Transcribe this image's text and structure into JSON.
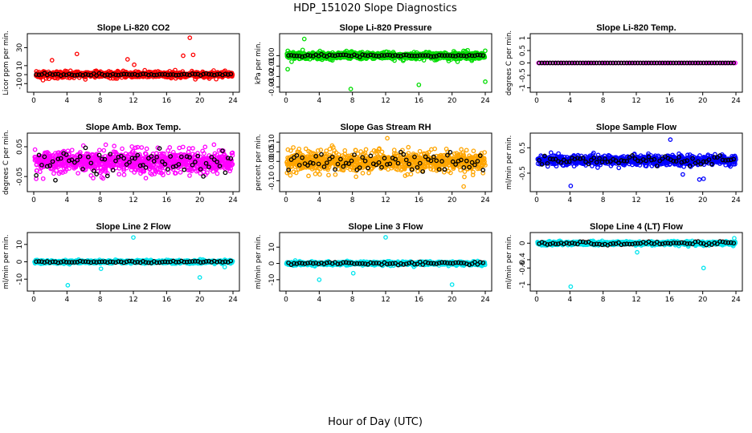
{
  "figure": {
    "title": "HDP_151020  Slope Diagnostics",
    "xlabel": "Hour of Day (UTC)"
  },
  "colors": {
    "red": "#ff0000",
    "green": "#00dd00",
    "magenta": "#ff00ff",
    "orange": "#ffa500",
    "blue": "#0000ff",
    "cyan": "#00e5ee",
    "black": "#000000"
  },
  "chart_data": [
    {
      "type": "scatter",
      "title": "Slope Li-820 CO2",
      "ylabel": "Licor ppm per min.",
      "xlim": [
        0,
        24
      ],
      "ylim": [
        -16,
        42
      ],
      "yticks": [
        -10,
        0,
        10,
        30
      ],
      "xticks": [
        0,
        4,
        8,
        12,
        16,
        20,
        24
      ],
      "color": "red",
      "spread": 4,
      "outliers": [
        [
          18.8,
          41
        ],
        [
          19.2,
          22
        ],
        [
          5.2,
          23
        ],
        [
          11.3,
          17
        ],
        [
          12.1,
          11
        ],
        [
          2.2,
          16
        ],
        [
          18,
          21
        ]
      ],
      "dense": [
        0.3,
        24
      ],
      "black_spread": 1.2
    },
    {
      "type": "scatter",
      "title": "Slope Li-820 Pressure",
      "ylabel": "kPa per min.",
      "xlim": [
        0,
        24
      ],
      "ylim": [
        -0.032,
        0.018
      ],
      "yticks": [
        -0.03,
        -0.02,
        -0.01,
        0.0
      ],
      "xticks": [
        0,
        4,
        8,
        12,
        16,
        20,
        24
      ],
      "color": "green",
      "spread": 0.004,
      "outliers": [
        [
          7.8,
          -0.032
        ],
        [
          24,
          -0.025
        ],
        [
          16,
          -0.028
        ],
        [
          2.2,
          0.016
        ],
        [
          0.2,
          -0.013
        ]
      ],
      "dense": [
        0.1,
        24
      ],
      "black_spread": 0.001
    },
    {
      "type": "scatter",
      "title": "Slope Li-820 Temp.",
      "ylabel": "degrees C per min.",
      "xlim": [
        0,
        24
      ],
      "ylim": [
        -1.05,
        1.05
      ],
      "yticks": [
        -1.0,
        -0.5,
        0.0,
        0.5,
        1.0
      ],
      "xticks": [
        0,
        4,
        8,
        12,
        16,
        20,
        24
      ],
      "color": "magenta",
      "spread": 0.0,
      "outliers": [],
      "dense": [
        0.2,
        24
      ],
      "black_spread": 0.0,
      "step": 0.33
    },
    {
      "type": "scatter",
      "title": "Slope Amb. Box Temp.",
      "ylabel": "degrees C per min.",
      "xlim": [
        0,
        24
      ],
      "ylim": [
        -0.09,
        0.085
      ],
      "yticks": [
        -0.05,
        0.05
      ],
      "xticks": [
        0,
        4,
        8,
        12,
        16,
        20,
        24
      ],
      "color": "magenta",
      "spread": 0.045,
      "outliers": [],
      "dense": [
        0.1,
        24
      ],
      "black_spread": 0.04
    },
    {
      "type": "scatter",
      "title": "Slope Gas Stream RH",
      "ylabel": "percent per min.",
      "xlim": [
        0,
        24
      ],
      "ylim": [
        -0.14,
        0.13
      ],
      "yticks": [
        -0.1,
        0.0,
        0.05,
        0.1
      ],
      "xticks": [
        0,
        4,
        8,
        12,
        16,
        20,
        24
      ],
      "color": "orange",
      "spread": 0.06,
      "outliers": [
        [
          12.2,
          0.12
        ],
        [
          21.4,
          -0.13
        ]
      ],
      "dense": [
        0.1,
        24
      ],
      "black_spread": 0.045
    },
    {
      "type": "scatter",
      "title": "Slope Sample Flow",
      "ylabel": "ml/min per min.",
      "xlim": [
        0,
        24
      ],
      "ylim": [
        -1.1,
        0.95
      ],
      "yticks": [
        -0.5,
        0.5
      ],
      "xticks": [
        0,
        4,
        8,
        12,
        16,
        20,
        24
      ],
      "color": "blue",
      "spread": 0.22,
      "outliers": [
        [
          4.1,
          -1.0
        ],
        [
          16.1,
          0.82
        ],
        [
          19.6,
          -0.75
        ],
        [
          20.1,
          -0.72
        ],
        [
          17.6,
          -0.55
        ]
      ],
      "dense": [
        0.1,
        24
      ],
      "black_spread": 0.15
    },
    {
      "type": "scatter",
      "title": "Slope Line 2 Flow",
      "ylabel": "ml/min per min.",
      "xlim": [
        0,
        24
      ],
      "ylim": [
        -15,
        15
      ],
      "yticks": [
        -10,
        0,
        10
      ],
      "xticks": [
        0,
        4,
        8,
        12,
        16,
        20,
        24
      ],
      "color": "cyan",
      "spread": 1.0,
      "outliers": [
        [
          4.1,
          -13.5
        ],
        [
          12,
          14
        ],
        [
          20,
          -9
        ],
        [
          8.1,
          -4
        ],
        [
          23,
          -3
        ]
      ],
      "dense": [
        0.1,
        24
      ],
      "black_spread": 0.6
    },
    {
      "type": "scatter",
      "title": "Slope Line 3 Flow",
      "ylabel": "ml/min per min.",
      "xlim": [
        0,
        24
      ],
      "ylim": [
        -15,
        17
      ],
      "yticks": [
        -10,
        0,
        10
      ],
      "xticks": [
        0,
        4,
        8,
        12,
        16,
        20,
        24
      ],
      "color": "cyan",
      "spread": 1.2,
      "outliers": [
        [
          4,
          -10
        ],
        [
          12,
          16
        ],
        [
          20,
          -13
        ],
        [
          8.1,
          -6
        ],
        [
          15.4,
          -2
        ]
      ],
      "dense": [
        0.1,
        24
      ],
      "black_spread": 0.9
    },
    {
      "type": "scatter",
      "title": "Slope Line 4 (LT) Flow",
      "ylabel": "ml/min per min.",
      "xlim": [
        0,
        24
      ],
      "ylim": [
        -1.08,
        0.18
      ],
      "yticks": [
        -1.0,
        -0.6,
        -0.4,
        0.0
      ],
      "xticks": [
        0,
        4,
        8,
        12,
        16,
        20,
        24
      ],
      "color": "cyan",
      "spread": 0.05,
      "outliers": [
        [
          4.1,
          -1.05
        ],
        [
          20.1,
          -0.6
        ],
        [
          12.1,
          -0.22
        ],
        [
          23.8,
          0.12
        ]
      ],
      "dense": [
        0.1,
        24
      ],
      "black_spread": 0.04
    }
  ]
}
